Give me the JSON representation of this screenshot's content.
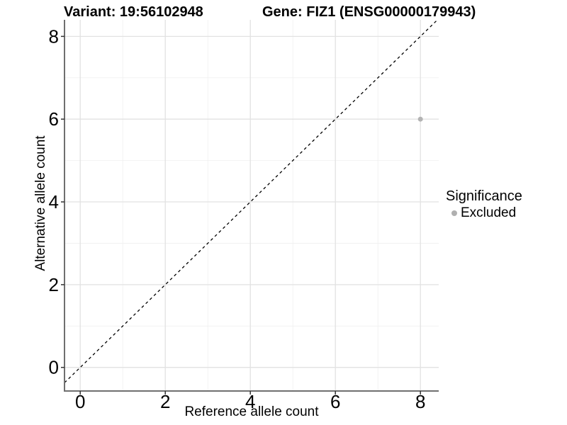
{
  "chart_data": {
    "type": "scatter",
    "title_left": "Variant: 19:56102948",
    "title_right": "Gene: FIZ1 (ENSG00000179943)",
    "xlabel": "Reference allele count",
    "ylabel": "Alternative allele count",
    "xlim": [
      -0.37,
      8.43
    ],
    "ylim": [
      -0.57,
      8.4
    ],
    "x_ticks": [
      0,
      2,
      4,
      6,
      8
    ],
    "y_ticks": [
      0,
      2,
      4,
      6,
      8
    ],
    "minor_breaks": [
      1,
      3,
      5,
      7
    ],
    "grid": true,
    "identity_line": {
      "style": "dashed",
      "slope": 1,
      "intercept": 0,
      "color": "#000000"
    },
    "points": [
      {
        "x": 8,
        "y": 6,
        "significance": "Excluded"
      }
    ],
    "legend": {
      "title": "Significance",
      "position": "right",
      "entries": [
        {
          "label": "Excluded",
          "color": "#b0b0b0"
        }
      ]
    },
    "colors": {
      "point": "#b3b3b3",
      "grid_major": "#e2e2e2",
      "grid_minor": "#efefef",
      "axis_line": "#6f6f6f",
      "tick_mark": "#333333",
      "text": "#000000"
    }
  }
}
